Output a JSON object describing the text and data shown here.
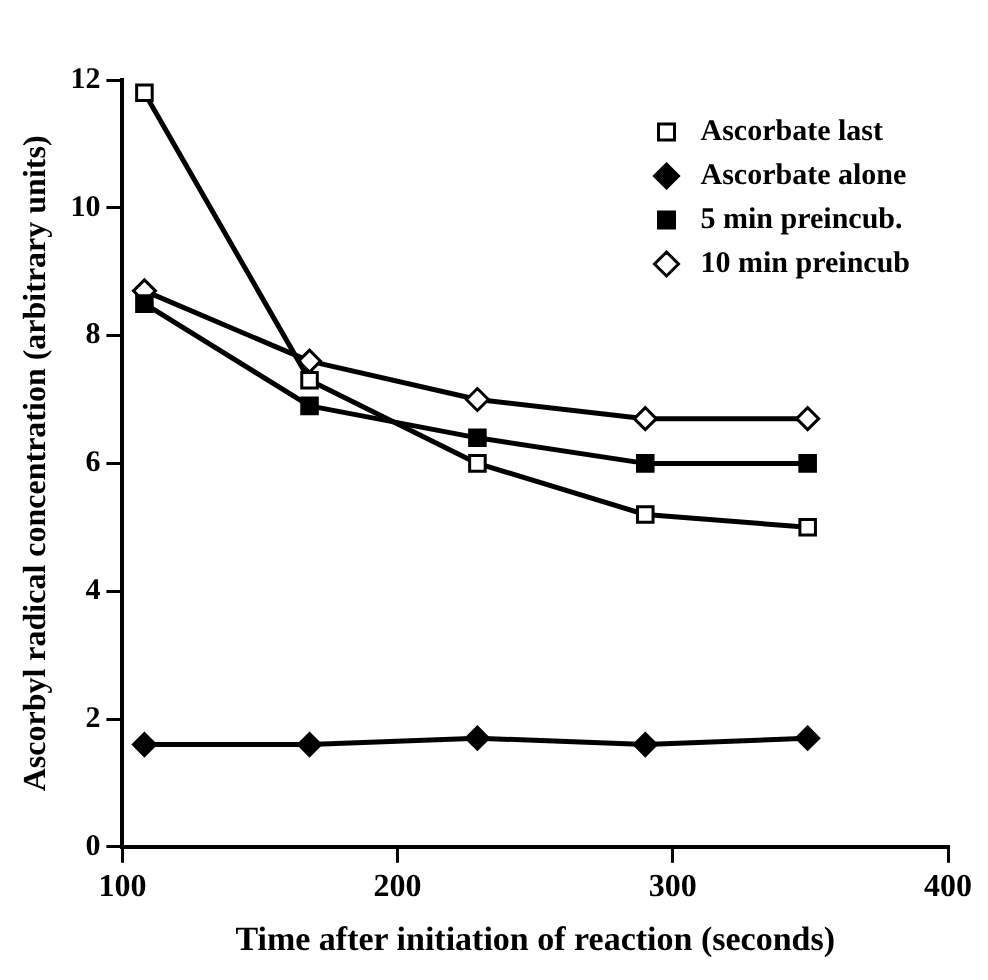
{
  "chart_data": {
    "type": "line",
    "xlabel": "Time after initiation of reaction (seconds)",
    "ylabel": "Ascorbyl radical concentration (arbitrary units)",
    "x": [
      108,
      168,
      229,
      290,
      349
    ],
    "xlim": [
      100,
      400
    ],
    "xticks": [
      100,
      200,
      300,
      400
    ],
    "ylim": [
      0,
      12
    ],
    "yticks": [
      0,
      2,
      4,
      6,
      8,
      10,
      12
    ],
    "grid": false,
    "legend": "top right",
    "line_style": "solid",
    "series": [
      {
        "name": "Ascorbate last",
        "color": "#000000",
        "marker": "square",
        "colors": [
          "#ffffff",
          "#ffffff",
          "#ffffff",
          "#ffffff",
          "#ffffff"
        ],
        "values": [
          11.8,
          7.3,
          6.0,
          5.2,
          5.0
        ]
      },
      {
        "name": "Ascorbate alone",
        "color": "#000000",
        "marker": "diamond",
        "values": [
          1.6,
          1.6,
          1.7,
          1.6,
          1.7
        ]
      },
      {
        "name": "5 min preincub.",
        "color": "#000000",
        "marker": "square",
        "values": [
          8.5,
          6.9,
          6.4,
          6.0,
          6.0
        ]
      },
      {
        "name": "10 min preincub",
        "color": "#000000",
        "marker": "diamond",
        "colors": [
          "#ffffff",
          "#ffffff",
          "#ffffff",
          "#ffffff",
          "#ffffff"
        ],
        "values": [
          8.7,
          7.6,
          7.0,
          6.7,
          6.7
        ]
      }
    ]
  }
}
